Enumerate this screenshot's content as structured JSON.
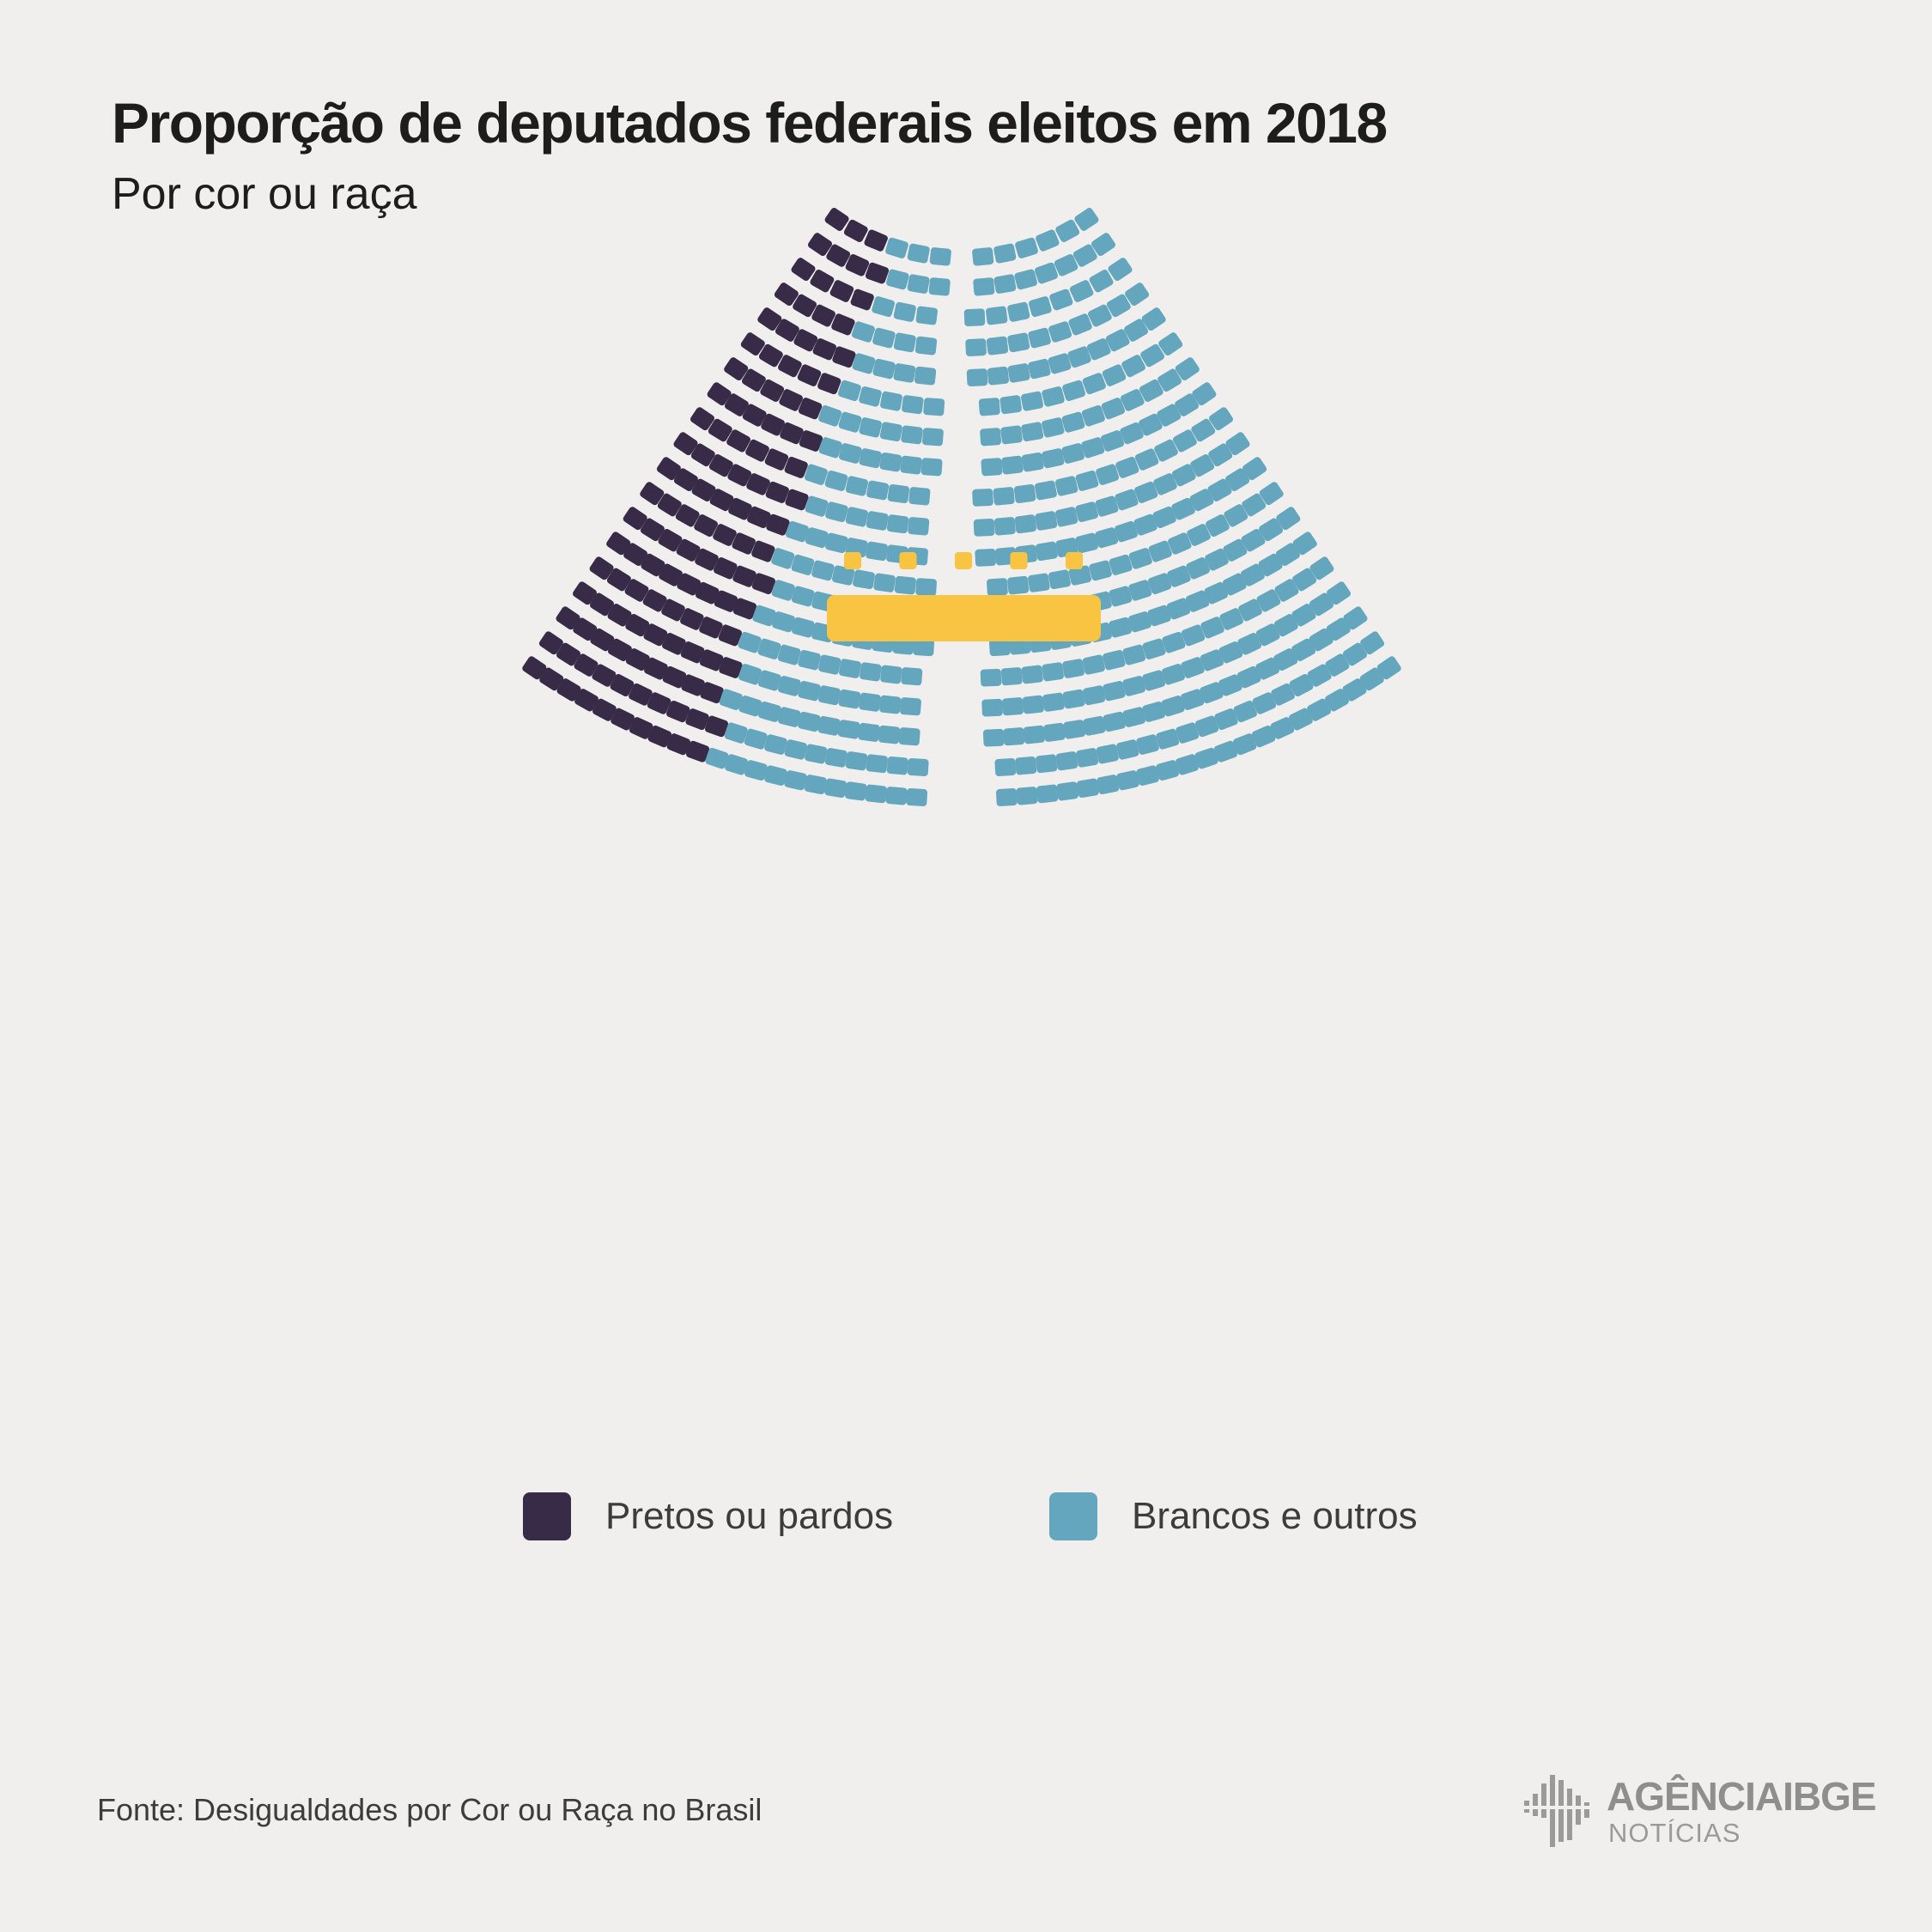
{
  "title": "Proporção de deputados federais eleitos em 2018",
  "subtitle": "Por cor ou raça",
  "source": "Fonte: Desigualdades por Cor ou Raça no Brasil",
  "logo": {
    "brand_main": "AGÊNCIA",
    "brand_bold": "IBGE",
    "brand_sub": "NOTÍCIAS"
  },
  "colors": {
    "background": "#f0efee",
    "pretos_ou_pardos": "#382b47",
    "brancos_e_outros": "#65a6bf",
    "mesa": "#f9c442",
    "text": "#1d1d1b"
  },
  "legend": [
    {
      "label": "Pretos ou pardos",
      "color": "#382b47"
    },
    {
      "label": "Brancos e outros",
      "color": "#65a6bf"
    }
  ],
  "chart_data": {
    "type": "parliament",
    "title": "Proporção de deputados federais eleitos em 2018",
    "subtitle": "Por cor ou raça",
    "total_seats": 513,
    "series": [
      {
        "name": "Pretos ou pardos",
        "values": [
          125
        ],
        "color": "#382b47"
      },
      {
        "name": "Brancos e outros",
        "values": [
          388
        ],
        "color": "#65a6bf"
      }
    ],
    "presiding_seats": 5
  }
}
